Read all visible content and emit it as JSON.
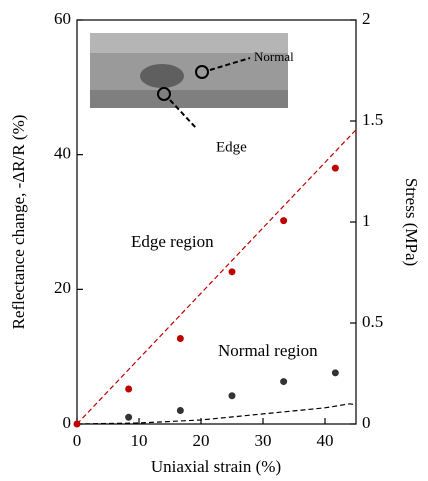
{
  "chart_data": {
    "type": "scatter",
    "x_label": "Uniaxial strain (%)",
    "y_label": "Reflectance change, -ΔR/R (%)",
    "y2_label": "Stress (MPa)",
    "xlim": [
      0,
      45
    ],
    "xticks": [
      0,
      10,
      20,
      30,
      40
    ],
    "ylim": [
      0,
      60
    ],
    "yticks": [
      0,
      20,
      40,
      60
    ],
    "y2lim": [
      0,
      2
    ],
    "y2ticks": [
      0,
      0.5,
      1,
      1.5,
      2
    ],
    "series": [
      {
        "name": "Edge region",
        "color": "#c00000",
        "x": [
          0,
          8.33,
          16.67,
          25,
          33.33,
          41.67
        ],
        "values": [
          0,
          5.2,
          12.7,
          22.6,
          30.2,
          38.0
        ]
      },
      {
        "name": "Normal region",
        "color": "#333333",
        "x": [
          8.33,
          16.67,
          25,
          33.33,
          41.67
        ],
        "values": [
          1.0,
          2.0,
          4.2,
          6.3,
          7.6
        ]
      }
    ],
    "fit_line": {
      "color": "#c00000",
      "x": [
        0,
        45
      ],
      "values": [
        0,
        43.7
      ]
    },
    "stress_curve": {
      "color": "#000000",
      "axis": "y2",
      "x": [
        0,
        10,
        20,
        30,
        40,
        44,
        45
      ],
      "values": [
        0,
        0.005,
        0.02,
        0.05,
        0.08,
        0.1,
        0.095
      ]
    },
    "inset_labels": [
      "Normal",
      "Edge"
    ]
  }
}
